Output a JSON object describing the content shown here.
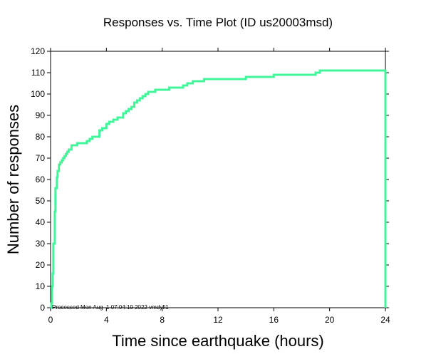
{
  "chart_data": {
    "type": "line",
    "step": true,
    "title": "Responses vs. Time Plot (ID us20003msd)",
    "xlabel": "Time since earthquake (hours)",
    "ylabel": "Number of responses",
    "xlim": [
      0,
      24
    ],
    "ylim": [
      0,
      120
    ],
    "xticks": [
      0,
      4,
      8,
      12,
      16,
      20,
      24
    ],
    "yticks": [
      0,
      10,
      20,
      30,
      40,
      50,
      60,
      70,
      80,
      90,
      100,
      110,
      120
    ],
    "grid": false,
    "line_color": "#40f59a",
    "footer": "Processed Mon Aug  1 07:04:19 2022 vmdyfi1",
    "series": [
      {
        "x": [
          0,
          0.05,
          0.1,
          0.15,
          0.2,
          0.3,
          0.35,
          0.45,
          0.5,
          0.6,
          0.7,
          0.8,
          0.9,
          1.0,
          1.1,
          1.2,
          1.3,
          1.5,
          1.7,
          1.9,
          2.1,
          2.3,
          2.6,
          2.8,
          3.0,
          3.5,
          3.7,
          3.9,
          4.0,
          4.2,
          4.5,
          4.6,
          4.8,
          5.2,
          5.4,
          5.6,
          5.8,
          6.0,
          6.2,
          6.4,
          6.6,
          6.8,
          7.0,
          7.2,
          7.5,
          8.0,
          8.5,
          9.0,
          9.5,
          9.8,
          10.2,
          11.0,
          12.5,
          13.5,
          14.0,
          16.0,
          19.0,
          19.3,
          20.0,
          24.0
        ],
        "y": [
          0,
          2,
          10,
          16,
          30,
          45,
          56,
          61,
          64,
          67,
          68,
          69,
          70,
          71,
          72,
          73,
          74,
          76,
          76,
          77,
          77,
          77,
          78,
          79,
          80,
          83,
          84,
          84,
          86,
          87,
          88,
          88,
          89,
          91,
          92,
          93,
          94,
          96,
          97,
          98,
          99,
          100,
          101,
          101,
          102,
          102,
          103,
          103,
          104,
          105,
          106,
          107,
          107,
          107,
          108,
          109,
          110,
          111,
          111,
          111
        ]
      }
    ]
  }
}
